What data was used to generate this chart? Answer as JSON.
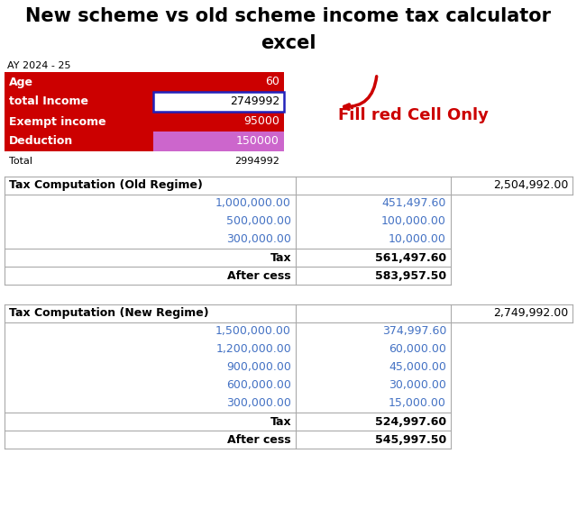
{
  "title_line1": "New scheme vs old scheme income tax calculator",
  "title_line2": "excel",
  "ay_label": "AY 2024 - 25",
  "input_rows": [
    {
      "label": "Age",
      "value": "60",
      "cell_bg": null
    },
    {
      "label": "total Income",
      "value": "2749992",
      "cell_bg": "white"
    },
    {
      "label": "Exempt income",
      "value": "95000",
      "cell_bg": null
    },
    {
      "label": "Deduction",
      "value": "150000",
      "cell_bg": "#cc66cc"
    }
  ],
  "total_label": "Total",
  "total_value": "2994992",
  "fill_text": "Fill red Cell Only",
  "red": "#cc0000",
  "blue_border": "#2222bb",
  "table_blue": "#4472c4",
  "gray": "#aaaaaa",
  "old_regime": {
    "title": "Tax Computation (Old Regime)",
    "taxable_income": "2,504,992.00",
    "rows": [
      [
        "1,000,000.00",
        "451,497.60"
      ],
      [
        "500,000.00",
        "100,000.00"
      ],
      [
        "300,000.00",
        "10,000.00"
      ]
    ],
    "tax_label": "Tax",
    "tax_value": "561,497.60",
    "cess_label": "After cess",
    "cess_value": "583,957.50"
  },
  "new_regime": {
    "title": "Tax Computation (New Regime)",
    "taxable_income": "2,749,992.00",
    "rows": [
      [
        "1,500,000.00",
        "374,997.60"
      ],
      [
        "1,200,000.00",
        "60,000.00"
      ],
      [
        "900,000.00",
        "45,000.00"
      ],
      [
        "600,000.00",
        "30,000.00"
      ],
      [
        "300,000.00",
        "15,000.00"
      ]
    ],
    "tax_label": "Tax",
    "tax_value": "524,997.60",
    "cess_label": "After cess",
    "cess_value": "545,997.50"
  }
}
